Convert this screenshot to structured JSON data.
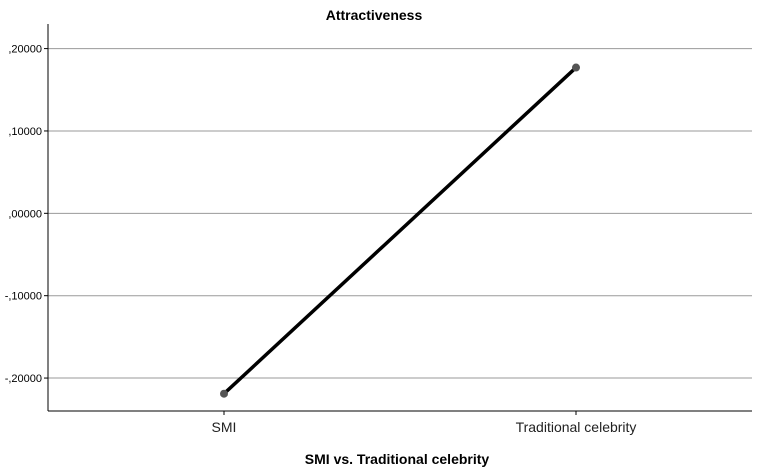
{
  "chart_data": {
    "type": "line",
    "title": "Attractiveness",
    "xlabel": "SMI vs. Traditional celebrity",
    "ylabel": "",
    "categories": [
      "SMI",
      "Traditional celebrity"
    ],
    "series": [
      {
        "values": [
          -0.219,
          0.177
        ],
        "color": "#000000",
        "marker_color": "#555555"
      }
    ],
    "ylim": [
      -0.24,
      0.225
    ],
    "yticks": [
      -0.2,
      -0.1,
      0.0,
      0.1,
      0.2
    ],
    "ytick_labels": [
      "-,20000",
      "-,10000",
      ",00000",
      ",10000",
      ",20000"
    ],
    "grid": true,
    "legend": "none"
  }
}
